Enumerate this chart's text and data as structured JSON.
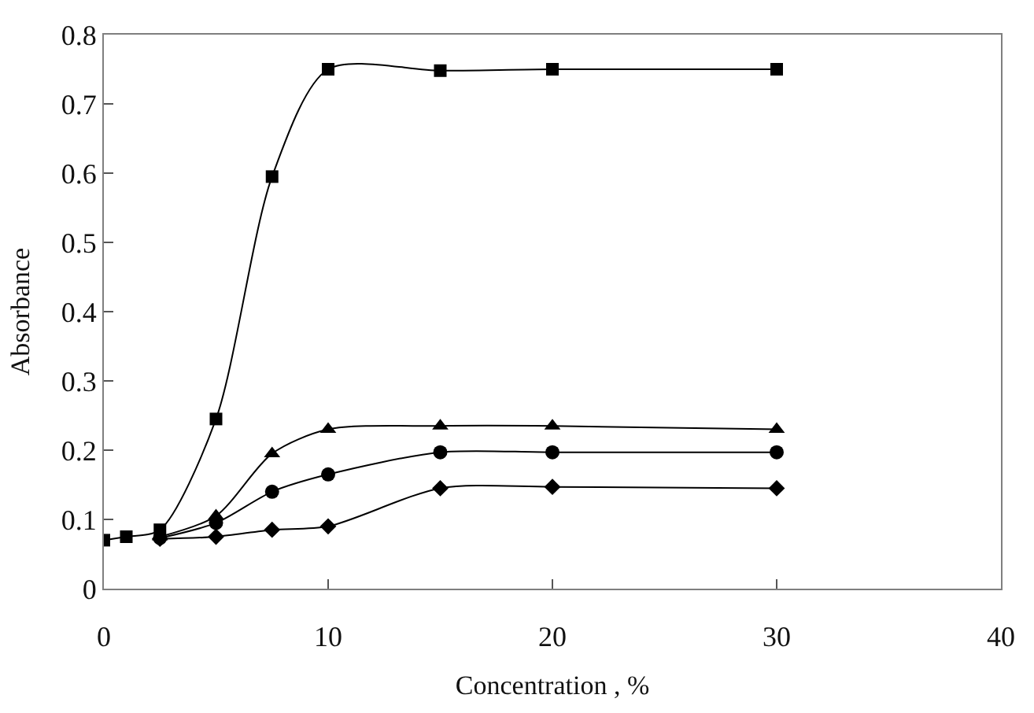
{
  "chart_data": {
    "type": "line",
    "xlabel": "Concentration , %",
    "ylabel": "Absorbance",
    "x": [
      0,
      1,
      2.5,
      5,
      7.5,
      10,
      15,
      20,
      30
    ],
    "series": [
      {
        "color": "#000000",
        "marker": "square",
        "values": [
          0.07,
          0.075,
          0.085,
          0.245,
          0.595,
          0.75,
          0.748,
          0.75,
          0.75
        ]
      },
      {
        "color": "#000000",
        "marker": "triangle",
        "values": [
          null,
          null,
          0.075,
          0.105,
          0.195,
          0.23,
          0.235,
          0.235,
          0.23
        ]
      },
      {
        "color": "#000000",
        "marker": "circle",
        "values": [
          null,
          null,
          0.073,
          0.095,
          0.14,
          0.165,
          0.197,
          0.197,
          0.197
        ]
      },
      {
        "color": "#000000",
        "marker": "diamond",
        "values": [
          null,
          null,
          0.072,
          0.075,
          0.085,
          0.09,
          0.145,
          0.147,
          0.145
        ]
      }
    ],
    "xlim": [
      0,
      40
    ],
    "xticks": [
      0,
      10,
      20,
      30,
      40
    ],
    "ylim": [
      0,
      0.8
    ],
    "yticks": [
      0,
      0.1,
      0.2,
      0.3,
      0.4,
      0.5,
      0.6,
      0.7,
      0.8
    ]
  }
}
